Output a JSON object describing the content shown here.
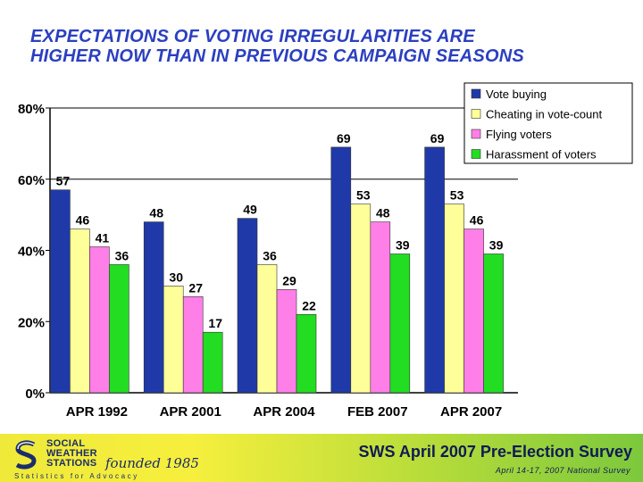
{
  "title_lines": [
    "EXPECTATIONS OF VOTING IRREGULARITIES ARE",
    "HIGHER NOW THAN IN PREVIOUS CAMPAIGN SEASONS"
  ],
  "chart_data": {
    "type": "bar",
    "title": "EXPECTATIONS OF VOTING IRREGULARITIES ARE HIGHER NOW THAN IN PREVIOUS CAMPAIGN SEASONS",
    "categories": [
      "APR 1992",
      "APR 2001",
      "APR 2004",
      "FEB 2007",
      "APR 2007"
    ],
    "series": [
      {
        "name": "Vote buying",
        "color": "#1f3aa8",
        "values": [
          57,
          48,
          49,
          69,
          69
        ]
      },
      {
        "name": "Cheating in vote-count",
        "color": "#ffff99",
        "values": [
          46,
          30,
          36,
          53,
          53
        ]
      },
      {
        "name": "Flying voters",
        "color": "#ff7fe8",
        "values": [
          41,
          27,
          29,
          48,
          46
        ]
      },
      {
        "name": "Harassment of voters",
        "color": "#22dd22",
        "values": [
          36,
          17,
          22,
          39,
          39
        ]
      }
    ],
    "yticks": [
      "0%",
      "20%",
      "40%",
      "60%",
      "80%"
    ],
    "ylim": [
      0,
      80
    ],
    "gridlines": [
      60,
      80
    ],
    "xlabel": "",
    "ylabel": "",
    "legend_position": "top-right"
  },
  "footer": {
    "org_lines": [
      "SOCIAL",
      "WEATHER",
      "STATIONS"
    ],
    "founded": "founded 1985",
    "tagline": "Statistics for Advocacy",
    "survey_title": "SWS April 2007 Pre-Election Survey",
    "survey_sub": "April 14-17, 2007 National Survey"
  }
}
